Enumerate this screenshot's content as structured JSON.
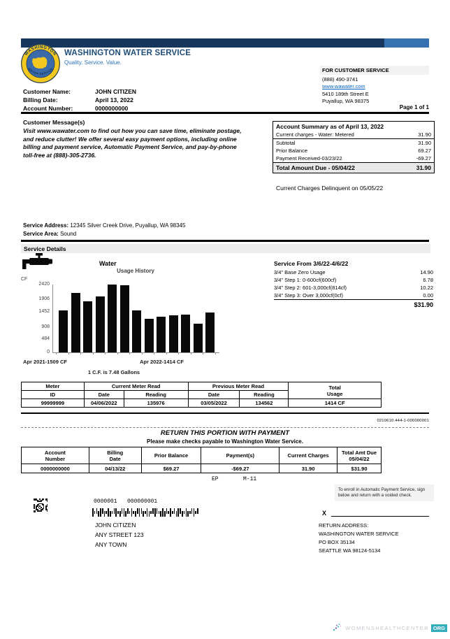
{
  "colors": {
    "brand_navy": "#17365D",
    "brand_blue": "#2E74B5",
    "logo_yellow": "#F2C81E",
    "link_blue": "#0563C1",
    "footer_teal": "#35AEBB",
    "footer_purple": "#6C4F9E"
  },
  "page": {
    "page_info": "Page 1 of 1"
  },
  "header": {
    "company": "WASHINGTON WATER SERVICE",
    "tagline": "Quality. Service. Value.",
    "logo_top": "WASHINGTON",
    "logo_bottom": "WATER SERVICE",
    "customer_service": {
      "title": "FOR CUSTOMER SERVICE",
      "phone": "(888) 490-3741",
      "website": "www.wawater.com",
      "address1": "5410 189th Street E",
      "address2": "Puyallup, WA 98375"
    }
  },
  "account_info": {
    "rows": [
      {
        "label": "Customer Name:",
        "value": "JOHN CITIZEN"
      },
      {
        "label": "Billing Date:",
        "value": "April 13, 2022"
      },
      {
        "label": "Account Number:",
        "value": "0000000000"
      }
    ]
  },
  "customer_message": {
    "title": "Customer Message(s)",
    "body": "Visit www.wawater.com to find out how you can save time, eliminate postage, and reduce clutter! We offer several easy payment options, including online billing and payment service, Automatic Payment Service, and pay-by-phone toll-free at (888)-305-2736."
  },
  "account_summary": {
    "title": "Account Summary as of April 13, 2022",
    "rows": [
      {
        "label": "Current charges - Water: Metered",
        "value": "31.90"
      },
      {
        "label": "Subtotal",
        "value": "31.90"
      },
      {
        "label": "Prior Balance",
        "value": "69.27"
      },
      {
        "label": "Payment Received-03/23/22",
        "value": "-69.27"
      }
    ],
    "total_label": "Total Amount Due - 05/04/22",
    "total_value": "31.90",
    "delinquent_note": "Current Charges Delinquent on 05/05/22"
  },
  "service_info": {
    "address_label": "Service Address:",
    "address": "12345 Silver Creek Drive, Puyallup, WA 98345",
    "area_label": "Service Area:",
    "area": "Sound",
    "section_title": "Service Details",
    "utility": "Water"
  },
  "chart_data": {
    "type": "bar",
    "title": "Usage History",
    "ylabel": "CF",
    "yticks": [
      2420,
      1906,
      1452,
      908,
      484,
      0
    ],
    "ylim": [
      0,
      2420
    ],
    "values": [
      1509,
      2115,
      1830,
      2005,
      2420,
      2395,
      1490,
      1200,
      1275,
      1335,
      1355,
      1035,
      1414
    ],
    "start_label": "Apr 2021-1509 CF",
    "end_label": "Apr 2022-1414 CF",
    "caption": "1 C.F. is 7.48 Gallons"
  },
  "service_charges": {
    "title": "Service From 3/6/22-4/6/22",
    "rows": [
      {
        "label": "3/4\" Base Zero Usage",
        "value": "14.90"
      },
      {
        "label": "3/4\" Step 1: 0-600cf(600cf)",
        "value": "6.78"
      },
      {
        "label": "3/4\" Step 2: 601-3,000cf(814cf)",
        "value": "10.22"
      },
      {
        "label": "3/4\" Step 3: Over 3,000cf(0cf)",
        "value": "0.00"
      }
    ],
    "total": "$31.90"
  },
  "meter_table": {
    "group_headers": [
      "Meter",
      "Current Meter Read",
      "Previous Meter Read"
    ],
    "total_header": {
      "l1": "Total",
      "l2": "Usage"
    },
    "sub_headers": [
      "ID",
      "Date",
      "Reading",
      "Date",
      "Reading"
    ],
    "row": [
      "99999999",
      "04/06/2022",
      "135976",
      "03/05/2022",
      "134562",
      "1414 CF"
    ]
  },
  "remittance": {
    "doc_code": "0210610.444-1-000000001",
    "return_title": "RETURN THIS PORTION WITH PAYMENT",
    "checks_note": "Please make checks payable to Washington Water Service.",
    "table": {
      "headers": [
        {
          "l1": "Account",
          "l2": "Number"
        },
        {
          "l1": "Billing",
          "l2": "Date"
        },
        {
          "l1": "Prior Balance",
          "l2": ""
        },
        {
          "l1": "Payment(s)",
          "l2": ""
        },
        {
          "l1": "Current Charges",
          "l2": ""
        },
        {
          "l1": "Total Amt Due",
          "l2": "05/04/22"
        }
      ],
      "row": [
        "0000000000",
        "04/13/22",
        "$69.27",
        "-$69.27",
        "31.90",
        "$31.90"
      ]
    },
    "code_ep": "EP",
    "code_m": "M-11",
    "enroll_note": "To enroll in Automatic Payment Service, sign below and return with a voided check.",
    "mail_numbers": "0000001   000000001",
    "mailing_address": [
      "JOHN CITIZEN",
      "ANY STREET 123",
      "ANY TOWN"
    ],
    "signature_x": "X",
    "return_address": [
      "RETURN ADDRESS:",
      "WASHINGTON WATER SERVICE",
      "PO BOX 35134",
      "SEATTLE WA 98124-5134"
    ]
  },
  "footer": {
    "watermark": "WOMENSHEALTHCENTER",
    "suffix": "ORG"
  }
}
